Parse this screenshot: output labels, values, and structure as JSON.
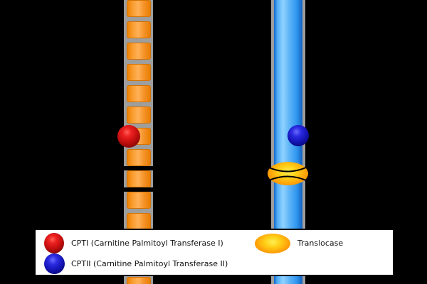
{
  "legend": {
    "items": [
      {
        "icon": "cpti-sphere-icon",
        "label": "CPTI (Carnitine Palmitoyl Transferase I)",
        "color": "#c40f0f"
      },
      {
        "icon": "cptii-sphere-icon",
        "label": "CPTII (Carnitine Palmitoyl Transferase II)",
        "color": "#1414b4"
      },
      {
        "icon": "translocase-ellipse-icon",
        "label": "Translocase",
        "color": "#ffa40a"
      }
    ]
  },
  "colors": {
    "background": "#000000",
    "tube-gray": "#9e9e9e",
    "membrane-orange": "#f99c2e",
    "membrane-blue": "#51aef7",
    "cpti-red": "#c40f0f",
    "cptii-blue": "#1414b4",
    "translocase-orange": "#ffa40a",
    "legend-bg": "#ffffff"
  },
  "layout_hints": {
    "orange_segment_count": 14
  }
}
